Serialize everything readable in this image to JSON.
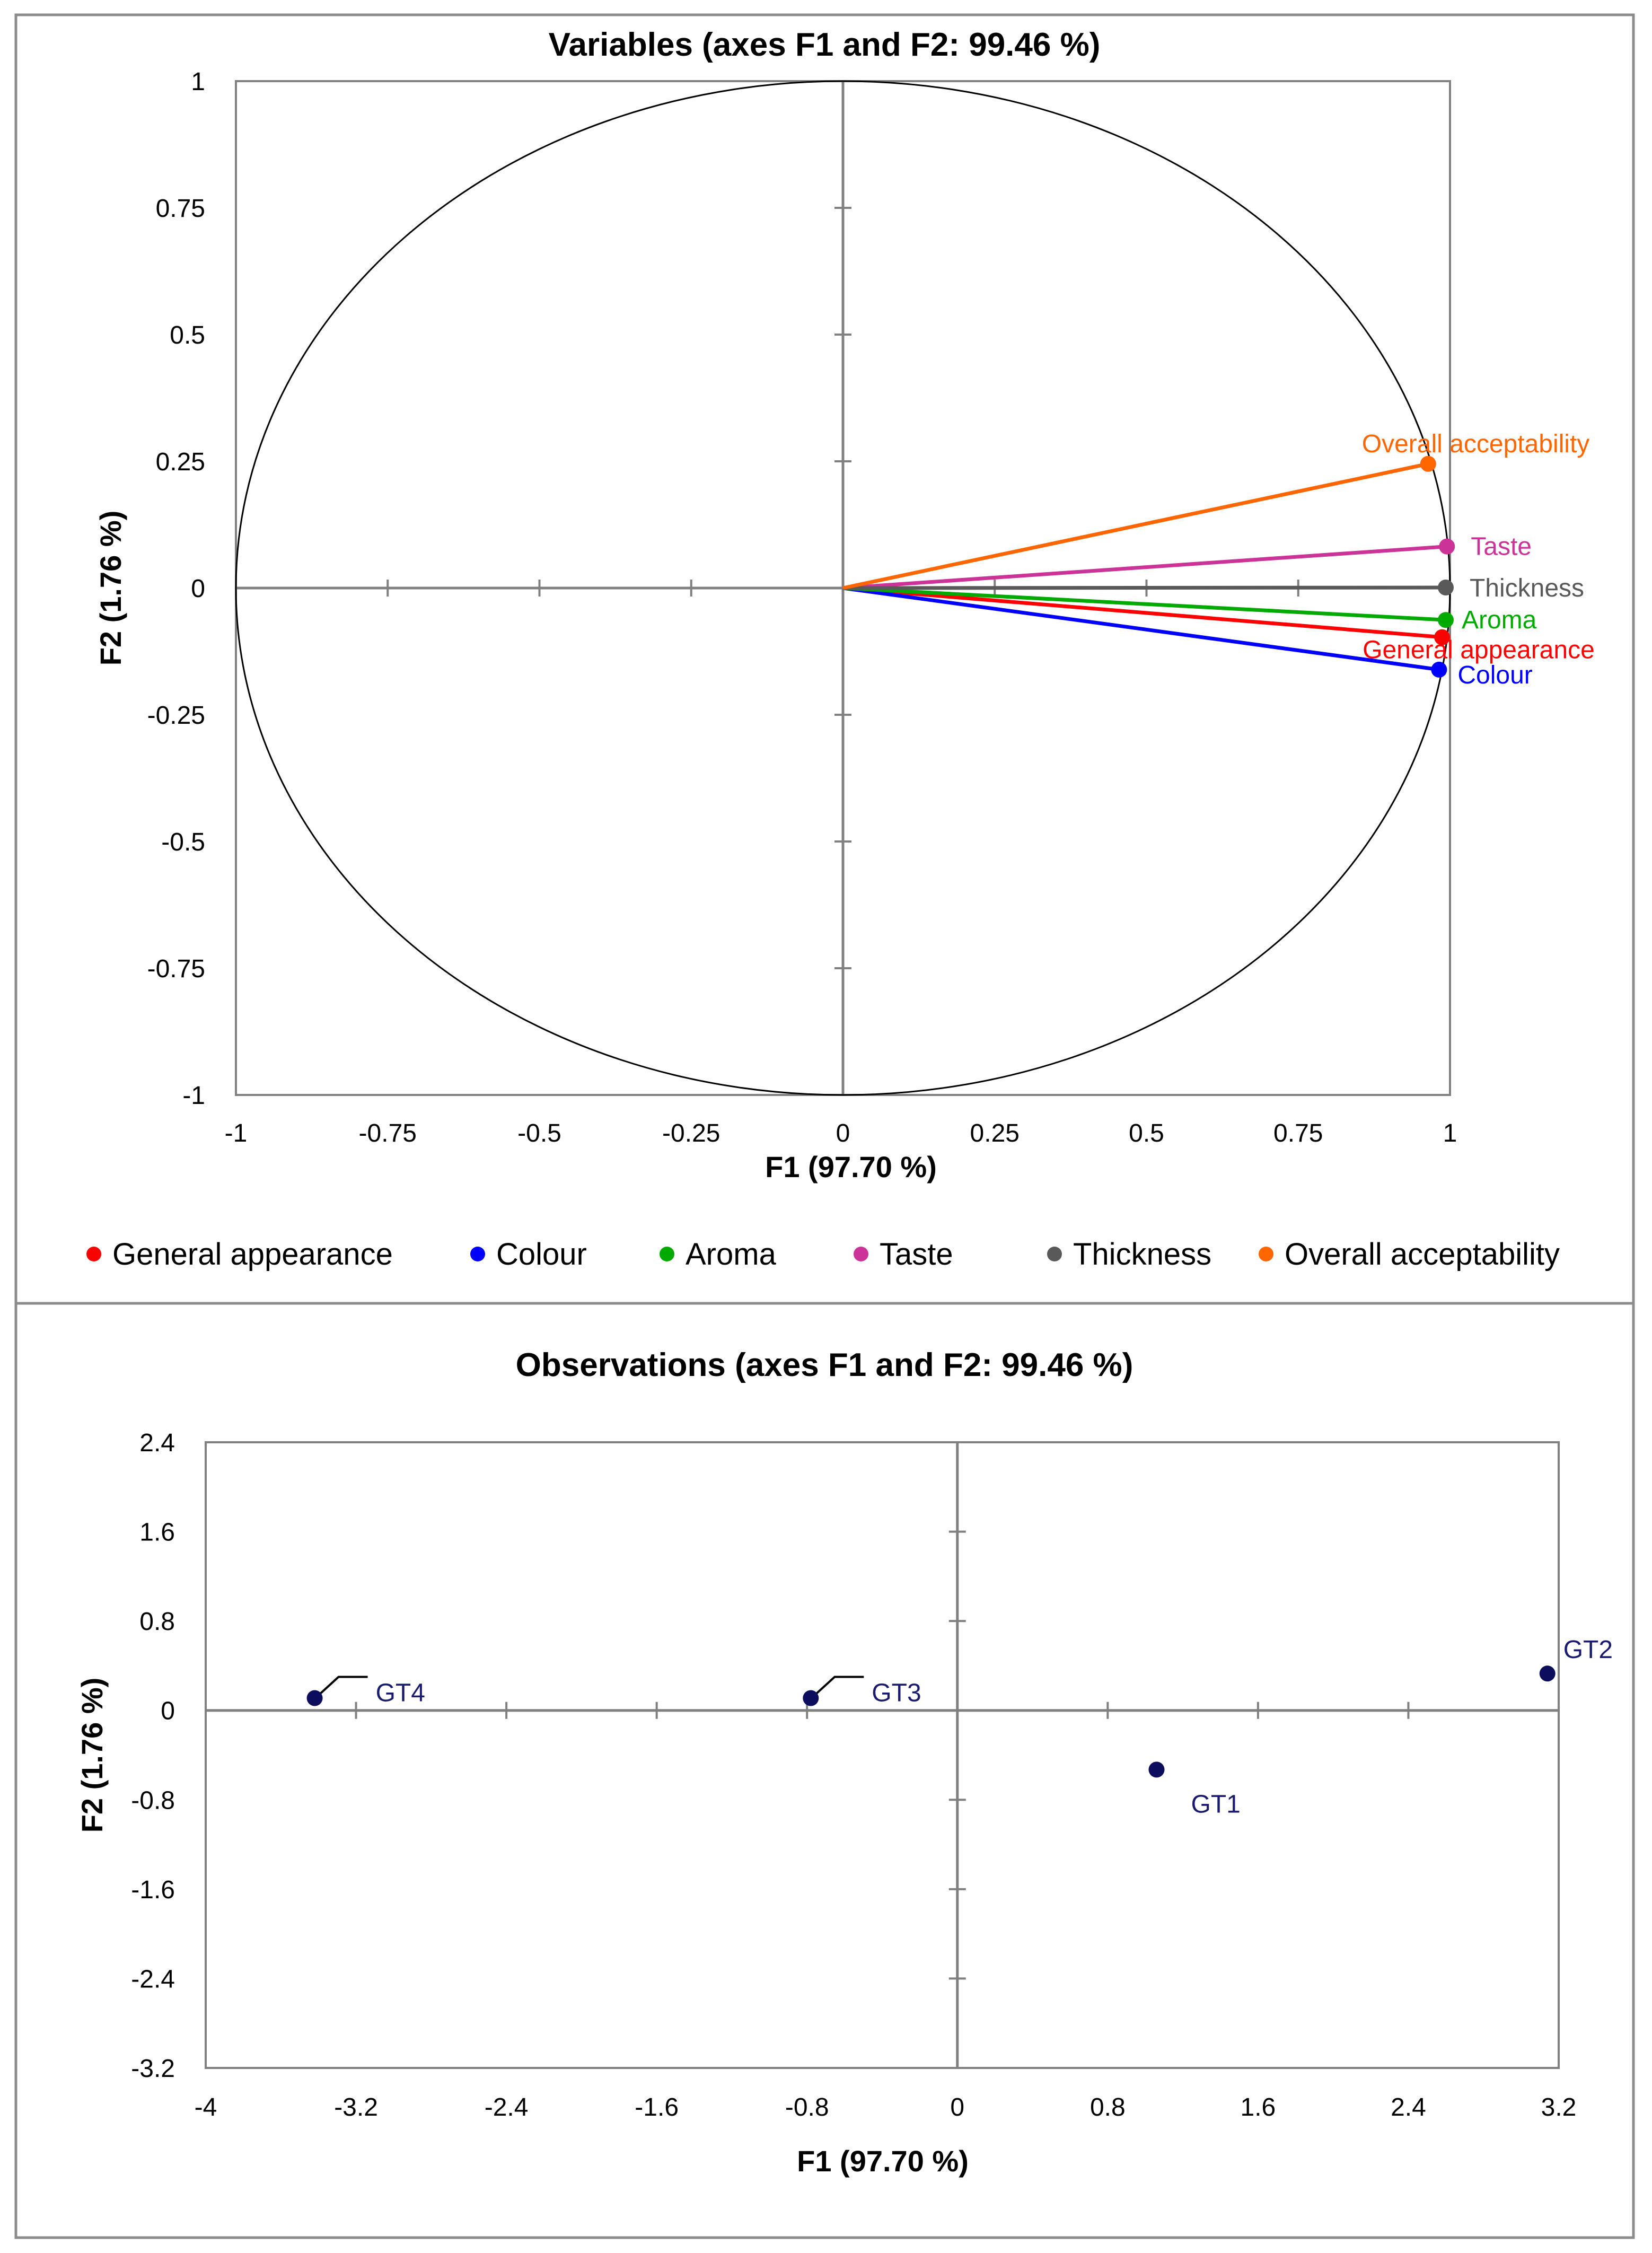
{
  "chart_data": [
    {
      "type": "scatter",
      "subtype": "correlation-circle",
      "title": "Variables (axes F1 and F2: 99.46 %)",
      "xlabel": "F1 (97.70 %)",
      "ylabel": "F2 (1.76 %)",
      "xlim": [
        -1,
        1
      ],
      "ylim": [
        -1,
        1
      ],
      "x_ticks": [
        "-1",
        "-0.75",
        "-0.5",
        "-0.25",
        "0",
        "0.25",
        "0.5",
        "0.75",
        "1"
      ],
      "y_ticks": [
        "1",
        "0.75",
        "0.5",
        "0.25",
        "0",
        "-0.25",
        "-0.5",
        "-0.75",
        "-1"
      ],
      "legend_position": "bottom",
      "series": [
        {
          "name": "General appearance",
          "x": 0.987,
          "y": -0.097,
          "color": "#ff0000"
        },
        {
          "name": "Colour",
          "x": 0.982,
          "y": -0.161,
          "color": "#0000ff"
        },
        {
          "name": "Aroma",
          "x": 0.993,
          "y": -0.063,
          "color": "#00aa00"
        },
        {
          "name": "Taste",
          "x": 0.995,
          "y": 0.082,
          "color": "#cc3399"
        },
        {
          "name": "Thickness",
          "x": 0.993,
          "y": 0.001,
          "color": "#595959"
        },
        {
          "name": "Overall acceptability",
          "x": 0.964,
          "y": 0.245,
          "color": "#ff6600"
        }
      ]
    },
    {
      "type": "scatter",
      "title": "Observations (axes F1 and F2: 99.46 %)",
      "xlabel": "F1 (97.70 %)",
      "ylabel": "F2 (1.76 %)",
      "xlim": [
        -4,
        3.2
      ],
      "ylim": [
        -3.2,
        2.4
      ],
      "x_ticks": [
        "-4",
        "-3.2",
        "-2.4",
        "-1.6",
        "-0.8",
        "0",
        "0.8",
        "1.6",
        "2.4",
        "3.2"
      ],
      "y_ticks": [
        "2.4",
        "1.6",
        "0.8",
        "0",
        "-0.8",
        "-1.6",
        "-2.4",
        "-3.2"
      ],
      "point_color": "#0d0d5e",
      "points": [
        {
          "label": "GT1",
          "x": 1.06,
          "y": -0.53
        },
        {
          "label": "GT2",
          "x": 3.14,
          "y": 0.33
        },
        {
          "label": "GT3",
          "x": -0.78,
          "y": 0.11
        },
        {
          "label": "GT4",
          "x": -3.42,
          "y": 0.11
        }
      ]
    }
  ]
}
